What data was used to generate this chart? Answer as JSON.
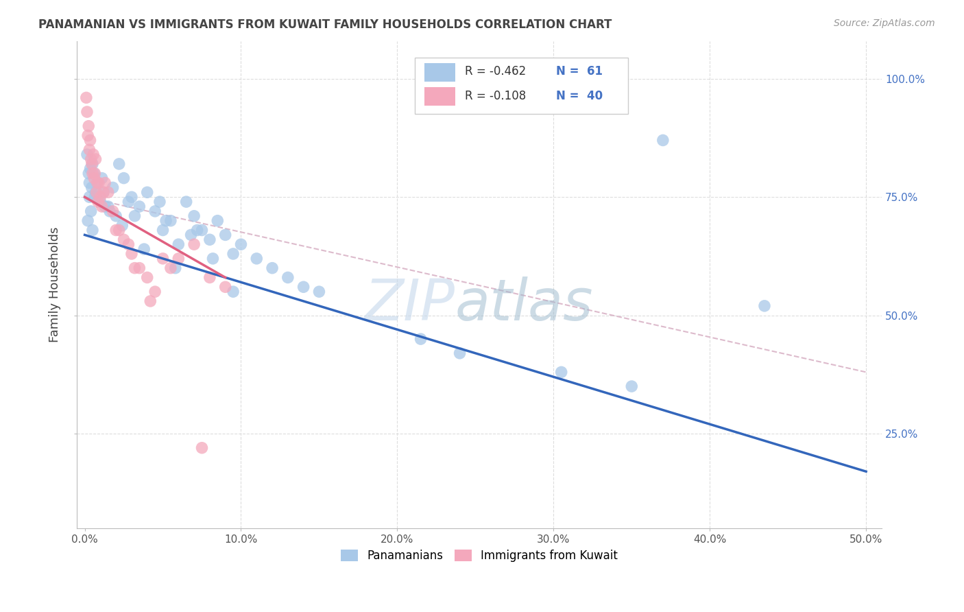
{
  "title": "PANAMANIAN VS IMMIGRANTS FROM KUWAIT FAMILY HOUSEHOLDS CORRELATION CHART",
  "source": "Source: ZipAtlas.com",
  "ylabel": "Family Households",
  "xlim": [
    -0.5,
    51
  ],
  "ylim": [
    5,
    108
  ],
  "legend_R1": "-0.462",
  "legend_N1": "61",
  "legend_R2": "-0.108",
  "legend_N2": "40",
  "blue_color": "#A8C8E8",
  "pink_color": "#F4A8BC",
  "blue_line_color": "#3366BB",
  "pink_line_color": "#E06080",
  "dashed_line_color": "#DDBBCC",
  "grid_color": "#DDDDDD",
  "blue_scatter_x": [
    0.2,
    0.3,
    0.4,
    0.5,
    0.6,
    0.8,
    1.0,
    1.2,
    1.5,
    1.8,
    2.0,
    2.2,
    2.5,
    3.0,
    3.5,
    4.0,
    4.5,
    5.0,
    5.5,
    6.0,
    6.5,
    7.0,
    7.5,
    8.0,
    8.5,
    9.0,
    9.5,
    10.0,
    11.0,
    12.0,
    13.0,
    14.0,
    15.0,
    0.3,
    0.5,
    0.7,
    1.1,
    1.6,
    2.8,
    5.2,
    7.2,
    37.0,
    9.5,
    0.15,
    0.25,
    0.45,
    3.2,
    4.8,
    6.8,
    8.2,
    21.5,
    24.0,
    30.5,
    35.0,
    43.5,
    0.35,
    0.65,
    1.3,
    2.4,
    3.8,
    5.8
  ],
  "blue_scatter_y": [
    70,
    75,
    72,
    68,
    80,
    78,
    74,
    76,
    73,
    77,
    71,
    82,
    79,
    75,
    73,
    76,
    72,
    68,
    70,
    65,
    74,
    71,
    68,
    66,
    70,
    67,
    63,
    65,
    62,
    60,
    58,
    56,
    55,
    78,
    82,
    76,
    79,
    72,
    74,
    70,
    68,
    87,
    55,
    84,
    80,
    77,
    71,
    74,
    67,
    62,
    45,
    42,
    38,
    35,
    52,
    81,
    75,
    73,
    69,
    64,
    60
  ],
  "pink_scatter_x": [
    0.1,
    0.15,
    0.2,
    0.25,
    0.3,
    0.35,
    0.4,
    0.45,
    0.5,
    0.55,
    0.6,
    0.7,
    0.8,
    0.9,
    1.0,
    1.1,
    1.2,
    1.5,
    1.8,
    2.0,
    2.5,
    3.0,
    3.5,
    4.0,
    4.5,
    5.0,
    5.5,
    6.0,
    7.0,
    8.0,
    9.0,
    0.65,
    0.75,
    0.85,
    1.3,
    2.2,
    3.2,
    4.2,
    2.8,
    7.5
  ],
  "pink_scatter_y": [
    96,
    93,
    88,
    90,
    85,
    87,
    83,
    82,
    80,
    84,
    79,
    83,
    78,
    78,
    75,
    73,
    76,
    76,
    72,
    68,
    66,
    63,
    60,
    58,
    55,
    62,
    60,
    62,
    65,
    58,
    56,
    80,
    76,
    74,
    78,
    68,
    60,
    53,
    65,
    22
  ],
  "blue_trend_x": [
    0,
    50
  ],
  "blue_trend_y": [
    67,
    17
  ],
  "pink_trend_x": [
    0,
    9
  ],
  "pink_trend_y": [
    75,
    58
  ],
  "dashed_trend_x": [
    0,
    50
  ],
  "dashed_trend_y": [
    75,
    38
  ]
}
